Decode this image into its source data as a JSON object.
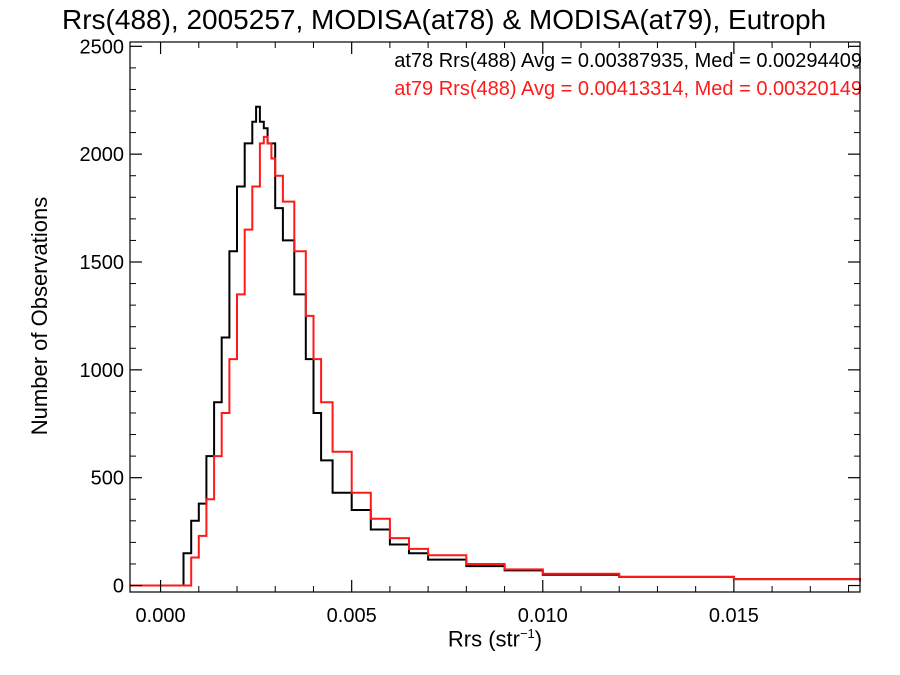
{
  "chart_data": {
    "type": "line",
    "step": true,
    "title": "Rrs(488), 2005257, MODISA(at78) & MODISA(at79), Eutroph",
    "xlabel_base": "Rrs (str",
    "xlabel_sup": "−1",
    "xlabel_close": ")",
    "ylabel": "Number of Observations",
    "xlim": [
      -0.0008,
      0.0183
    ],
    "ylim": [
      -30,
      2520
    ],
    "xticks": [
      "0.000",
      "0.005",
      "0.010",
      "0.015"
    ],
    "xtick_values": [
      0.0,
      0.005,
      0.01,
      0.015
    ],
    "yticks": [
      "0",
      "500",
      "1000",
      "1500",
      "2000",
      "2500"
    ],
    "ytick_values": [
      0,
      500,
      1000,
      1500,
      2000,
      2500
    ],
    "grid": false,
    "legend_position": "top-right",
    "series": [
      {
        "name": "at78 Rrs(488) Avg = 0.00387935, Med = 0.00294409",
        "color": "#000000",
        "x": [
          -0.0008,
          0.0005,
          0.0006,
          0.0008,
          0.001,
          0.0012,
          0.0014,
          0.0016,
          0.0018,
          0.002,
          0.0022,
          0.0024,
          0.0025,
          0.0026,
          0.0027,
          0.0028,
          0.003,
          0.0032,
          0.0035,
          0.0038,
          0.004,
          0.0042,
          0.0045,
          0.005,
          0.0055,
          0.006,
          0.0065,
          0.007,
          0.008,
          0.009,
          0.01,
          0.012,
          0.015,
          0.0183
        ],
        "y": [
          0,
          0,
          150,
          300,
          380,
          600,
          850,
          1150,
          1550,
          1850,
          2050,
          2150,
          2220,
          2150,
          2120,
          2050,
          1750,
          1600,
          1350,
          1050,
          800,
          580,
          430,
          350,
          260,
          190,
          150,
          120,
          90,
          70,
          50,
          40,
          30,
          20
        ]
      },
      {
        "name": "at79 Rrs(488) Avg = 0.00413314, Med = 0.00320149",
        "color": "#ff1a1a",
        "x": [
          -0.0008,
          0.0006,
          0.0008,
          0.001,
          0.0012,
          0.0014,
          0.0016,
          0.0018,
          0.002,
          0.0022,
          0.0024,
          0.0026,
          0.0027,
          0.0028,
          0.0029,
          0.003,
          0.0032,
          0.0035,
          0.0038,
          0.004,
          0.0042,
          0.0045,
          0.005,
          0.0055,
          0.006,
          0.0065,
          0.007,
          0.008,
          0.009,
          0.01,
          0.012,
          0.015,
          0.0183
        ],
        "y": [
          0,
          0,
          130,
          230,
          400,
          600,
          800,
          1050,
          1350,
          1650,
          1850,
          2050,
          2080,
          2050,
          1980,
          1900,
          1780,
          1550,
          1250,
          1050,
          850,
          620,
          430,
          310,
          220,
          170,
          140,
          100,
          75,
          55,
          40,
          30,
          20
        ]
      }
    ]
  }
}
